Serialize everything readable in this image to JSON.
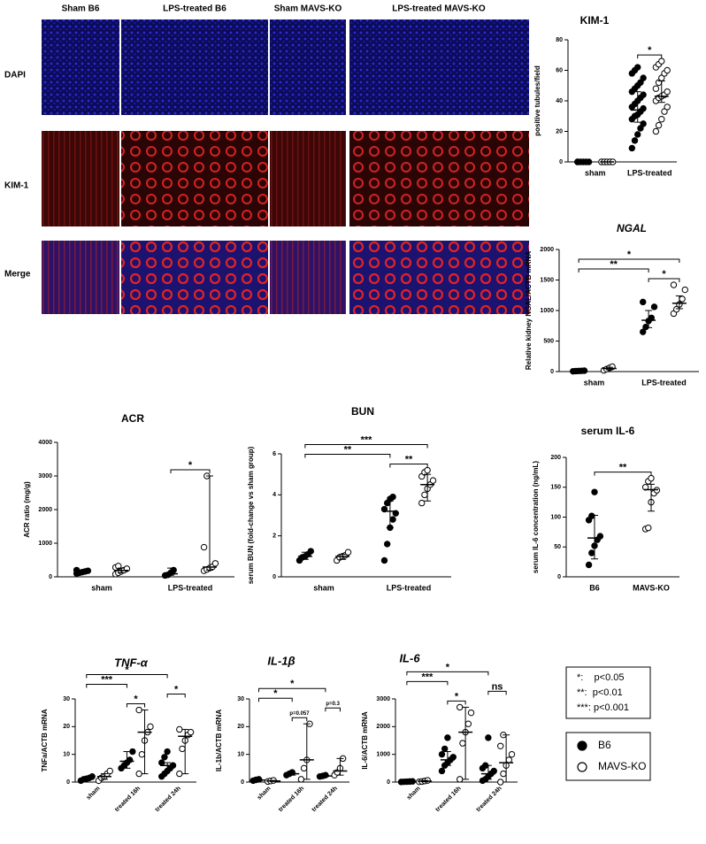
{
  "micrographs": {
    "columns": [
      "Sham B6",
      "LPS-treated B6",
      "Sham MAVS-KO",
      "LPS-treated MAVS-KO"
    ],
    "rows": [
      "DAPI",
      "KIM-1",
      "Merge"
    ]
  },
  "legend": {
    "significance": [
      "*:    p<0.05",
      "**:  p<0.01",
      "***: p<0.001"
    ],
    "series": [
      {
        "name": "B6",
        "color": "#000000"
      },
      {
        "name": "MAVS-KO",
        "color": "#ffffff"
      }
    ]
  },
  "chart_data": [
    {
      "type": "dot",
      "title": "KIM-1",
      "y_label": "positive tubules/field",
      "categories": [
        "sham",
        "LPS-treated"
      ],
      "ylim": [
        0,
        80
      ],
      "yticks": [
        0,
        20,
        40,
        60,
        80
      ],
      "groups": [
        {
          "category": 0,
          "series": 0,
          "points": [
            0,
            0,
            0,
            0,
            0,
            0
          ],
          "center": 0,
          "spread": [
            0,
            0
          ]
        },
        {
          "category": 0,
          "series": 1,
          "points": [
            0,
            0,
            0,
            0,
            0
          ],
          "center": 0,
          "spread": [
            0,
            0
          ]
        },
        {
          "category": 1,
          "series": 0,
          "points": [
            9,
            14,
            18,
            22,
            25,
            28,
            30,
            31,
            33,
            35,
            36,
            38,
            40,
            42,
            44,
            46,
            48,
            50,
            52,
            55,
            58,
            60,
            62
          ],
          "center": 34,
          "spread": [
            26,
            46
          ]
        },
        {
          "category": 1,
          "series": 1,
          "points": [
            20,
            24,
            28,
            33,
            36,
            40,
            42,
            43,
            44,
            46,
            48,
            52,
            55,
            58,
            60,
            62,
            64,
            66
          ],
          "center": 43,
          "spread": [
            39,
            53
          ]
        }
      ],
      "brackets": [
        {
          "label": "*",
          "from": 2,
          "to": 3
        }
      ]
    },
    {
      "type": "dot",
      "title": "NGAL",
      "title_style": "italic",
      "y_label": "Relative kidney NGAL/ACTB mRNA",
      "categories": [
        "sham",
        "LPS-treated"
      ],
      "ylim": [
        0,
        2000
      ],
      "yticks": [
        0,
        500,
        1000,
        1500,
        2000
      ],
      "groups": [
        {
          "category": 0,
          "series": 0,
          "points": [
            5,
            8,
            10,
            12,
            15
          ],
          "center": 10,
          "spread": [
            5,
            15
          ]
        },
        {
          "category": 0,
          "series": 1,
          "points": [
            20,
            40,
            60,
            80
          ],
          "center": 50,
          "spread": [
            30,
            70
          ]
        },
        {
          "category": 1,
          "series": 0,
          "points": [
            650,
            730,
            830,
            880,
            1060,
            1140
          ],
          "center": 840,
          "spread": [
            720,
            1000
          ]
        },
        {
          "category": 1,
          "series": 1,
          "points": [
            950,
            1020,
            1100,
            1190,
            1340,
            1420
          ],
          "center": 1120,
          "spread": [
            1030,
            1240
          ]
        }
      ],
      "brackets": [
        {
          "label": "*",
          "from": 2,
          "to": 3
        },
        {
          "label": "**",
          "from": 0,
          "to": 2
        },
        {
          "label": "*",
          "from": 0,
          "to": 3
        }
      ]
    },
    {
      "type": "dot",
      "title": "ACR",
      "y_label": "ACR ratio (mg/g)",
      "categories": [
        "sham",
        "LPS-treated"
      ],
      "ylim": [
        0,
        4000
      ],
      "yticks": [
        0,
        1000,
        2000,
        3000,
        4000
      ],
      "groups": [
        {
          "category": 0,
          "series": 0,
          "points": [
            100,
            120,
            140,
            160,
            180,
            200
          ],
          "center": 150,
          "spread": [
            120,
            180
          ]
        },
        {
          "category": 0,
          "series": 1,
          "points": [
            80,
            120,
            160,
            200,
            240,
            280,
            320
          ],
          "center": 190,
          "spread": [
            120,
            260
          ]
        },
        {
          "category": 1,
          "series": 0,
          "points": [
            40,
            60,
            120,
            200
          ],
          "center": 90,
          "spread": [
            50,
            260
          ]
        },
        {
          "category": 1,
          "series": 1,
          "points": [
            180,
            220,
            260,
            300,
            400,
            880,
            3000
          ],
          "center": 290,
          "spread": [
            200,
            3000
          ]
        }
      ],
      "brackets": [
        {
          "label": "*",
          "from": 2,
          "to": 3
        }
      ]
    },
    {
      "type": "dot",
      "title": "BUN",
      "y_label": "serum BUN (fold-change vs sham group)",
      "categories": [
        "sham",
        "LPS-treated"
      ],
      "ylim": [
        0,
        6
      ],
      "yticks": [
        0,
        2,
        4,
        6
      ],
      "groups": [
        {
          "category": 0,
          "series": 0,
          "points": [
            0.8,
            0.95,
            1.0,
            1.1,
            1.25
          ],
          "center": 1.0,
          "spread": [
            0.85,
            1.2
          ]
        },
        {
          "category": 0,
          "series": 1,
          "points": [
            0.8,
            0.95,
            1.0,
            1.05,
            1.2
          ],
          "center": 1.0,
          "spread": [
            0.85,
            1.1
          ]
        },
        {
          "category": 1,
          "series": 0,
          "points": [
            0.8,
            1.6,
            2.4,
            2.8,
            3.1,
            3.3,
            3.6,
            3.8,
            3.9
          ],
          "center": 3.2,
          "spread": [
            2.4,
            3.7
          ]
        },
        {
          "category": 1,
          "series": 1,
          "points": [
            3.6,
            4.0,
            4.3,
            4.5,
            4.7,
            4.9,
            5.1,
            5.2
          ],
          "center": 4.5,
          "spread": [
            3.7,
            5.0
          ]
        }
      ],
      "brackets": [
        {
          "label": "**",
          "from": 2,
          "to": 3
        },
        {
          "label": "**",
          "from": 0,
          "to": 2
        },
        {
          "label": "***",
          "from": 0,
          "to": 3
        }
      ]
    },
    {
      "type": "dot",
      "title": "serum IL-6",
      "y_label": "serum IL-6 concentration (ng/mL)",
      "categories": [
        "B6",
        "MAVS-KO"
      ],
      "ylim": [
        0,
        200
      ],
      "yticks": [
        0,
        50,
        100,
        150,
        200
      ],
      "groups": [
        {
          "category": 0,
          "series": 0,
          "points": [
            20,
            40,
            52,
            62,
            68,
            95,
            102,
            142
          ],
          "center": 65,
          "spread": [
            30,
            103
          ]
        },
        {
          "category": 1,
          "series": 1,
          "points": [
            80,
            82,
            125,
            140,
            145,
            150,
            160,
            165
          ],
          "center": 146,
          "spread": [
            110,
            155
          ]
        }
      ],
      "brackets": [
        {
          "label": "**",
          "from": 0,
          "to": 1
        }
      ]
    },
    {
      "type": "dot",
      "title": "TNF-α",
      "title_style": "italic",
      "y_label": "TNFa/ACTB mRNA",
      "rotate_categories": true,
      "categories": [
        "sham",
        "treated 16h",
        "treated 24h"
      ],
      "ylim": [
        0,
        30
      ],
      "yticks": [
        0,
        10,
        20,
        30
      ],
      "groups": [
        {
          "category": 0,
          "series": 0,
          "points": [
            0.5,
            1,
            1.2,
            1.5,
            2
          ],
          "center": 1,
          "spread": [
            0.7,
            1.5
          ]
        },
        {
          "category": 0,
          "series": 1,
          "points": [
            0.5,
            1.5,
            2,
            3,
            4
          ],
          "center": 2,
          "spread": [
            1,
            3
          ]
        },
        {
          "category": 1,
          "series": 0,
          "points": [
            5,
            6,
            7,
            8,
            11
          ],
          "center": 7.5,
          "spread": [
            5,
            11
          ]
        },
        {
          "category": 1,
          "series": 1,
          "points": [
            3,
            10,
            15,
            18,
            20,
            26
          ],
          "center": 18,
          "spread": [
            3,
            26
          ]
        },
        {
          "category": 2,
          "series": 0,
          "points": [
            2,
            3,
            4,
            5,
            6,
            7,
            9,
            11
          ],
          "center": 6,
          "spread": [
            4,
            7
          ]
        },
        {
          "category": 2,
          "series": 1,
          "points": [
            3,
            12,
            15,
            17,
            18,
            19
          ],
          "center": 16.5,
          "spread": [
            3,
            19
          ]
        }
      ],
      "brackets": [
        {
          "label": "*",
          "from": 2,
          "to": 3
        },
        {
          "label": "*",
          "from": 4,
          "to": 5
        },
        {
          "label": "***",
          "from": 0,
          "to": 2
        },
        {
          "label": "*",
          "from": 0,
          "to": 4
        }
      ]
    },
    {
      "type": "dot",
      "title": "IL-1β",
      "title_style": "italic",
      "y_label": "IL-1b/ACTB mRNA",
      "rotate_categories": true,
      "categories": [
        "sham",
        "treated 16h",
        "treated 24h"
      ],
      "ylim": [
        0,
        30
      ],
      "yticks": [
        0,
        10,
        20,
        30
      ],
      "groups": [
        {
          "category": 0,
          "series": 0,
          "points": [
            0.5,
            0.8,
            1
          ],
          "center": 0.7,
          "spread": [
            0.5,
            1
          ]
        },
        {
          "category": 0,
          "series": 1,
          "points": [
            0.2,
            0.4,
            0.6
          ],
          "center": 0.4,
          "spread": [
            0.2,
            0.6
          ]
        },
        {
          "category": 1,
          "series": 0,
          "points": [
            2.5,
            3,
            3.5
          ],
          "center": 3,
          "spread": [
            2.5,
            3.5
          ]
        },
        {
          "category": 1,
          "series": 1,
          "points": [
            1,
            5,
            8,
            21
          ],
          "center": 8,
          "spread": [
            1,
            21
          ]
        },
        {
          "category": 2,
          "series": 0,
          "points": [
            2,
            2.2,
            2.5
          ],
          "center": 2.2,
          "spread": [
            2,
            2.5
          ]
        },
        {
          "category": 2,
          "series": 1,
          "points": [
            2.5,
            3.5,
            5,
            8.5
          ],
          "center": 4,
          "spread": [
            2.5,
            8.5
          ]
        }
      ],
      "brackets": [
        {
          "label": "p=0.057",
          "from": 2,
          "to": 3
        },
        {
          "label": "p=0.3",
          "from": 4,
          "to": 5
        },
        {
          "label": "*",
          "from": 0,
          "to": 2
        },
        {
          "label": "*",
          "from": 0,
          "to": 4
        }
      ]
    },
    {
      "type": "dot",
      "title": "IL-6",
      "title_style": "italic",
      "y_label": "IL-6/ACTB mRNA",
      "rotate_categories": true,
      "categories": [
        "sham",
        "treated 16h",
        "treated 24h"
      ],
      "ylim": [
        0,
        3000
      ],
      "yticks": [
        0,
        1000,
        2000,
        3000
      ],
      "groups": [
        {
          "category": 0,
          "series": 0,
          "points": [
            5,
            10,
            15,
            20,
            25
          ],
          "center": 15,
          "spread": [
            5,
            25
          ]
        },
        {
          "category": 0,
          "series": 1,
          "points": [
            10,
            20,
            40,
            60
          ],
          "center": 30,
          "spread": [
            10,
            60
          ]
        },
        {
          "category": 1,
          "series": 0,
          "points": [
            400,
            600,
            700,
            800,
            900,
            1000,
            1200,
            1600
          ],
          "center": 800,
          "spread": [
            600,
            1100
          ]
        },
        {
          "category": 1,
          "series": 1,
          "points": [
            100,
            1400,
            1800,
            2100,
            2500,
            2700
          ],
          "center": 1800,
          "spread": [
            100,
            2700
          ]
        },
        {
          "category": 2,
          "series": 0,
          "points": [
            50,
            100,
            200,
            300,
            400,
            500,
            600,
            1600
          ],
          "center": 300,
          "spread": [
            100,
            600
          ]
        },
        {
          "category": 2,
          "series": 1,
          "points": [
            0,
            300,
            600,
            800,
            1000,
            1300,
            1700
          ],
          "center": 700,
          "spread": [
            0,
            1700
          ]
        }
      ],
      "brackets": [
        {
          "label": "*",
          "from": 2,
          "to": 3
        },
        {
          "label": "ns",
          "from": 4,
          "to": 5
        },
        {
          "label": "***",
          "from": 0,
          "to": 2
        },
        {
          "label": "*",
          "from": 0,
          "to": 4
        }
      ]
    }
  ]
}
